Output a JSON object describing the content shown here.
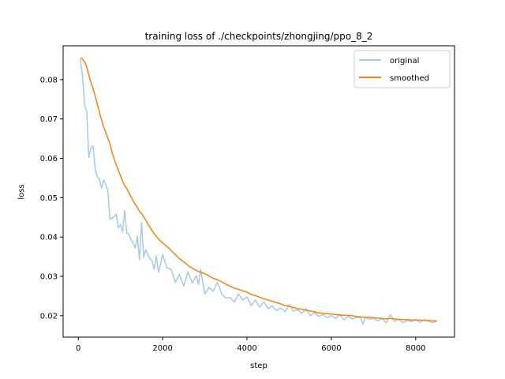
{
  "chart_data": {
    "type": "line",
    "title": "training loss of ./checkpoints/zhongjing/ppo_8_2",
    "xlabel": "step",
    "ylabel": "loss",
    "xlim": [
      -360,
      8920
    ],
    "ylim": [
      0.01455,
      0.0886
    ],
    "xticks": [
      0,
      2000,
      4000,
      6000,
      8000
    ],
    "yticks": [
      0.02,
      0.03,
      0.04,
      0.05,
      0.06,
      0.07,
      0.08
    ],
    "ytick_labels": [
      "0.02",
      "0.03",
      "0.04",
      "0.05",
      "0.06",
      "0.07",
      "0.08"
    ],
    "grid": false,
    "legend_position": "upper right",
    "series": [
      {
        "name": "original",
        "color": "#a6cae3",
        "x": [
          50,
          100,
          150,
          200,
          250,
          300,
          350,
          400,
          450,
          500,
          550,
          600,
          650,
          700,
          750,
          800,
          850,
          900,
          950,
          1000,
          1050,
          1100,
          1150,
          1200,
          1250,
          1300,
          1350,
          1400,
          1450,
          1500,
          1550,
          1600,
          1650,
          1700,
          1750,
          1800,
          1850,
          1900,
          1950,
          2000,
          2100,
          2200,
          2300,
          2400,
          2500,
          2600,
          2700,
          2800,
          2850,
          2900,
          3000,
          3100,
          3200,
          3300,
          3400,
          3500,
          3600,
          3700,
          3800,
          3900,
          4000,
          4100,
          4200,
          4300,
          4400,
          4500,
          4600,
          4700,
          4800,
          4900,
          5000,
          5100,
          5200,
          5300,
          5400,
          5500,
          5600,
          5700,
          5800,
          5900,
          6000,
          6100,
          6200,
          6300,
          6400,
          6500,
          6600,
          6700,
          6750,
          6800,
          6900,
          7000,
          7100,
          7200,
          7300,
          7400,
          7500,
          7600,
          7700,
          7800,
          7900,
          8000,
          8100,
          8200,
          8300,
          8400,
          8500
        ],
        "y": [
          0.0852,
          0.0808,
          0.0735,
          0.0718,
          0.0602,
          0.0626,
          0.0632,
          0.0573,
          0.0553,
          0.0548,
          0.0524,
          0.0545,
          0.0533,
          0.0518,
          0.0445,
          0.0448,
          0.0452,
          0.0458,
          0.0423,
          0.0432,
          0.0412,
          0.0467,
          0.041,
          0.0408,
          0.0392,
          0.0385,
          0.0372,
          0.0402,
          0.0342,
          0.0437,
          0.0348,
          0.0368,
          0.0355,
          0.0345,
          0.034,
          0.0318,
          0.0352,
          0.0311,
          0.0332,
          0.0355,
          0.0322,
          0.0318,
          0.0285,
          0.0305,
          0.0275,
          0.0312,
          0.0283,
          0.0302,
          0.0279,
          0.0318,
          0.0255,
          0.0272,
          0.0262,
          0.0285,
          0.0255,
          0.0245,
          0.0246,
          0.0235,
          0.0255,
          0.024,
          0.0248,
          0.0226,
          0.024,
          0.0222,
          0.0235,
          0.0218,
          0.0225,
          0.0213,
          0.022,
          0.021,
          0.0228,
          0.0212,
          0.0215,
          0.0206,
          0.0218,
          0.02,
          0.0208,
          0.0198,
          0.0203,
          0.0195,
          0.02,
          0.0193,
          0.0202,
          0.019,
          0.0198,
          0.0192,
          0.0196,
          0.0194,
          0.0178,
          0.0196,
          0.0191,
          0.0193,
          0.0187,
          0.0193,
          0.0182,
          0.0203,
          0.0186,
          0.0191,
          0.0182,
          0.0188,
          0.0185,
          0.0191,
          0.0183,
          0.019,
          0.0186,
          0.0183,
          0.0185
        ]
      },
      {
        "name": "smoothed",
        "color": "#ff7f0e",
        "x": [
          50,
          100,
          150,
          200,
          250,
          300,
          350,
          400,
          450,
          500,
          550,
          600,
          650,
          700,
          750,
          800,
          850,
          900,
          950,
          1000,
          1050,
          1100,
          1150,
          1200,
          1250,
          1300,
          1350,
          1400,
          1450,
          1500,
          1550,
          1600,
          1650,
          1700,
          1750,
          1800,
          1850,
          1900,
          1950,
          2000,
          2100,
          2200,
          2300,
          2400,
          2500,
          2600,
          2700,
          2800,
          2850,
          2900,
          3000,
          3100,
          3200,
          3300,
          3400,
          3500,
          3600,
          3700,
          3800,
          3900,
          4000,
          4100,
          4200,
          4300,
          4400,
          4500,
          4600,
          4700,
          4800,
          4900,
          5000,
          5100,
          5200,
          5300,
          5400,
          5500,
          5600,
          5700,
          5800,
          5900,
          6000,
          6100,
          6200,
          6300,
          6400,
          6500,
          6600,
          6700,
          6750,
          6800,
          6900,
          7000,
          7100,
          7200,
          7300,
          7400,
          7500,
          7600,
          7700,
          7800,
          7900,
          8000,
          8100,
          8200,
          8300,
          8400,
          8500
        ],
        "y": [
          0.0855,
          0.0852,
          0.0845,
          0.0832,
          0.0812,
          0.0793,
          0.0778,
          0.0758,
          0.0738,
          0.0718,
          0.0698,
          0.068,
          0.0666,
          0.0652,
          0.0637,
          0.0616,
          0.0598,
          0.0583,
          0.057,
          0.0556,
          0.0542,
          0.0531,
          0.0523,
          0.0512,
          0.0502,
          0.0492,
          0.0483,
          0.0475,
          0.0465,
          0.046,
          0.0452,
          0.0443,
          0.0433,
          0.0425,
          0.0416,
          0.0408,
          0.0402,
          0.0395,
          0.039,
          0.0385,
          0.0376,
          0.0366,
          0.0355,
          0.0345,
          0.0337,
          0.0328,
          0.0321,
          0.0315,
          0.0312,
          0.0311,
          0.0307,
          0.0301,
          0.0295,
          0.0291,
          0.0286,
          0.028,
          0.0275,
          0.027,
          0.0267,
          0.0263,
          0.026,
          0.0254,
          0.0251,
          0.0247,
          0.0243,
          0.024,
          0.0237,
          0.0233,
          0.023,
          0.0226,
          0.0224,
          0.0221,
          0.0218,
          0.0216,
          0.0214,
          0.0212,
          0.021,
          0.0207,
          0.0206,
          0.0205,
          0.0204,
          0.0203,
          0.0202,
          0.0201,
          0.0201,
          0.02,
          0.0198,
          0.0197,
          0.0196,
          0.0196,
          0.0196,
          0.0195,
          0.0194,
          0.0193,
          0.0192,
          0.0193,
          0.0192,
          0.0191,
          0.019,
          0.019,
          0.0189,
          0.0189,
          0.0189,
          0.0188,
          0.0188,
          0.0187,
          0.0187
        ]
      }
    ]
  }
}
